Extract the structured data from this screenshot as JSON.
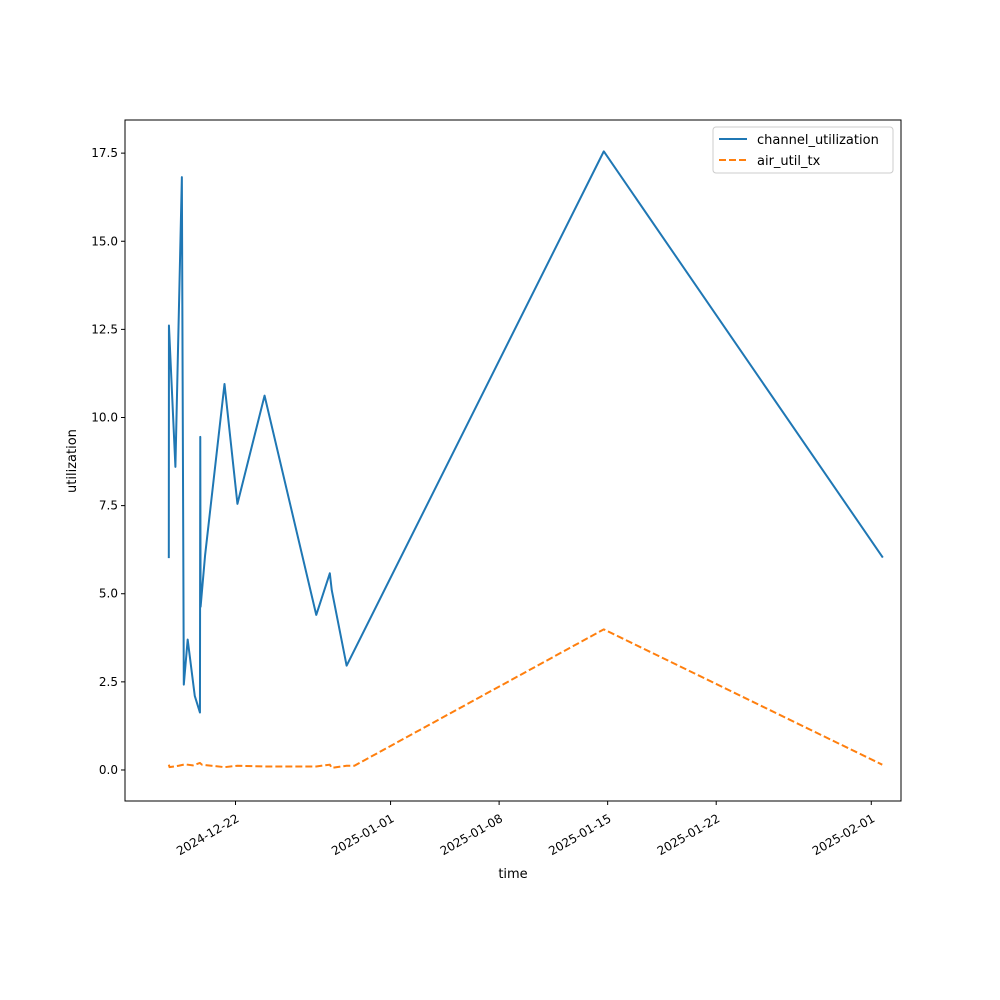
{
  "chart_data": {
    "type": "line",
    "xlabel": "time",
    "ylabel": "utilization",
    "x_axis_type": "date",
    "xlim": [
      "2024-12-14T21:00",
      "2025-02-02T22:00"
    ],
    "ylim": [
      -0.88,
      18.44
    ],
    "grid": false,
    "legend_position": "top-right",
    "x_ticks": [
      {
        "date": "2024-12-22",
        "label": "2024-12-22"
      },
      {
        "date": "2025-01-01",
        "label": "2025-01-01"
      },
      {
        "date": "2025-01-08",
        "label": "2025-01-08"
      },
      {
        "date": "2025-01-15",
        "label": "2025-01-15"
      },
      {
        "date": "2025-01-22",
        "label": "2025-01-22"
      },
      {
        "date": "2025-02-01",
        "label": "2025-02-01"
      }
    ],
    "y_ticks": [
      {
        "value": 0.0,
        "label": "0.0"
      },
      {
        "value": 2.5,
        "label": "2.5"
      },
      {
        "value": 5.0,
        "label": "5.0"
      },
      {
        "value": 7.5,
        "label": "7.5"
      },
      {
        "value": 10.0,
        "label": "10.0"
      },
      {
        "value": 12.5,
        "label": "12.5"
      },
      {
        "value": 15.0,
        "label": "15.0"
      },
      {
        "value": 17.5,
        "label": "17.5"
      }
    ],
    "series": [
      {
        "name": "channel_utilization",
        "color": "#1f77b4",
        "dash": "solid",
        "points": [
          {
            "x": "2024-12-17T16:48",
            "y": 6.04
          },
          {
            "x": "2024-12-17T17:00",
            "y": 12.61
          },
          {
            "x": "2024-12-18T03:00",
            "y": 8.6
          },
          {
            "x": "2024-12-18T13:00",
            "y": 16.82
          },
          {
            "x": "2024-12-18T16:00",
            "y": 2.42
          },
          {
            "x": "2024-12-18T22:00",
            "y": 3.7
          },
          {
            "x": "2024-12-19T09:00",
            "y": 2.1
          },
          {
            "x": "2024-12-19T17:00",
            "y": 1.63
          },
          {
            "x": "2024-12-19T17:30",
            "y": 9.45
          },
          {
            "x": "2024-12-19T18:00",
            "y": 4.63
          },
          {
            "x": "2024-12-20T01:00",
            "y": 6.1
          },
          {
            "x": "2024-12-21T07:00",
            "y": 10.95
          },
          {
            "x": "2024-12-22T03:00",
            "y": 7.55
          },
          {
            "x": "2024-12-23T21:00",
            "y": 10.62
          },
          {
            "x": "2024-12-27T05:00",
            "y": 4.4
          },
          {
            "x": "2024-12-28T02:00",
            "y": 5.58
          },
          {
            "x": "2024-12-28T05:00",
            "y": 5.1
          },
          {
            "x": "2024-12-29T04:00",
            "y": 2.96
          },
          {
            "x": "2025-01-14T18:00",
            "y": 17.55
          },
          {
            "x": "2025-02-01T17:00",
            "y": 6.05
          }
        ]
      },
      {
        "name": "air_util_tx",
        "color": "#ff7f0e",
        "dash": "dashed",
        "points": [
          {
            "x": "2024-12-17T16:48",
            "y": 0.15
          },
          {
            "x": "2024-12-17T18:00",
            "y": 0.08
          },
          {
            "x": "2024-12-18T08:00",
            "y": 0.12
          },
          {
            "x": "2024-12-18T18:00",
            "y": 0.16
          },
          {
            "x": "2024-12-19T06:00",
            "y": 0.13
          },
          {
            "x": "2024-12-19T17:00",
            "y": 0.2
          },
          {
            "x": "2024-12-19T20:00",
            "y": 0.15
          },
          {
            "x": "2024-12-21T07:00",
            "y": 0.08
          },
          {
            "x": "2024-12-22T03:00",
            "y": 0.12
          },
          {
            "x": "2024-12-23T21:00",
            "y": 0.1
          },
          {
            "x": "2024-12-27T05:00",
            "y": 0.1
          },
          {
            "x": "2024-12-28T02:00",
            "y": 0.15
          },
          {
            "x": "2024-12-28T05:00",
            "y": 0.06
          },
          {
            "x": "2024-12-29T04:00",
            "y": 0.12
          },
          {
            "x": "2024-12-29T16:00",
            "y": 0.12
          },
          {
            "x": "2025-01-14T18:00",
            "y": 3.99
          },
          {
            "x": "2025-02-01T17:00",
            "y": 0.15
          }
        ]
      }
    ]
  }
}
